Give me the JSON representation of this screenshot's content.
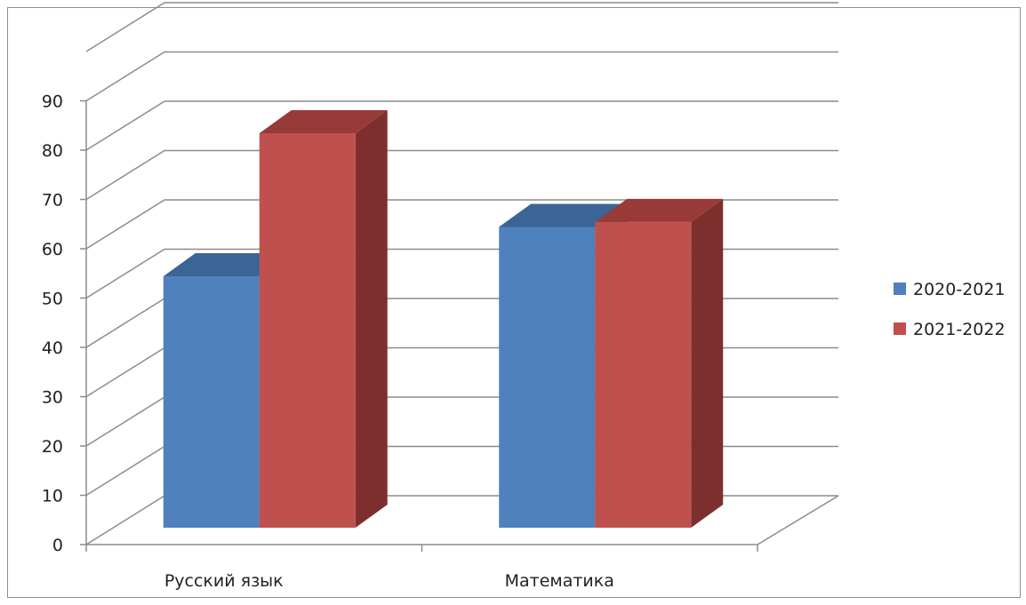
{
  "chart_data": {
    "type": "bar",
    "categories": [
      "Русский язык",
      "Математика"
    ],
    "series": [
      {
        "name": "2020-2021",
        "values": [
          51,
          61
        ],
        "color": "#4f81bd",
        "top_color": "#3b6497",
        "side_color": "#2f507a"
      },
      {
        "name": "2021-2022",
        "values": [
          80,
          62
        ],
        "color": "#c0504d",
        "top_color": "#983a38",
        "side_color": "#7d2f2e"
      }
    ],
    "ylim": [
      0,
      100
    ],
    "y_ticks": [
      0,
      10,
      20,
      30,
      40,
      50,
      60,
      70,
      80,
      90
    ],
    "grid": true,
    "legend": "right",
    "style": "3d-clustered-column"
  }
}
